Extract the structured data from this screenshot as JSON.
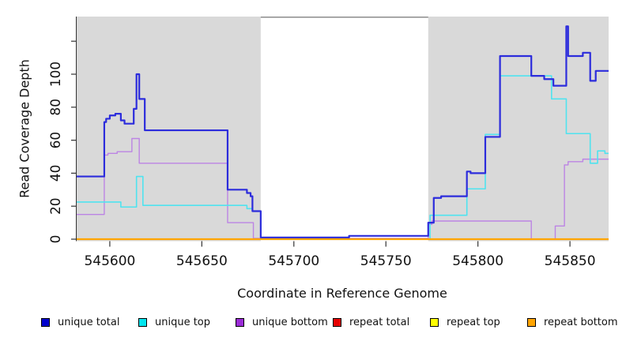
{
  "figure": {
    "x_title": "Coordinate in Reference Genome",
    "y_title": "Read Coverage Depth"
  },
  "chart_data": {
    "type": "line",
    "style": "step",
    "title": "",
    "xlabel": "Coordinate in Reference Genome",
    "ylabel": "Read Coverage Depth",
    "x_domain": [
      545582,
      545871
    ],
    "y_domain": [
      0,
      134
    ],
    "grid": false,
    "legend_position": "bottom",
    "panel_bg": "#d9d9d9",
    "axis_color": "#333333",
    "tick_label_color": "#111111",
    "x_ticks": [
      {
        "value": 545600,
        "label": "545600"
      },
      {
        "value": 545650,
        "label": "545650"
      },
      {
        "value": 545700,
        "label": "545700"
      },
      {
        "value": 545750,
        "label": "545750"
      },
      {
        "value": 545800,
        "label": "545800"
      },
      {
        "value": 545850,
        "label": "545850"
      }
    ],
    "y_ticks": [
      {
        "value": 0,
        "label": "0"
      },
      {
        "value": 20,
        "label": "20"
      },
      {
        "value": 40,
        "label": "40"
      },
      {
        "value": 60,
        "label": "60"
      },
      {
        "value": 80,
        "label": "80"
      },
      {
        "value": 100,
        "label": "100"
      },
      {
        "value": 120,
        "label": ""
      }
    ],
    "gap_region": {
      "x_start": 545682,
      "x_end": 545773,
      "fill": "#ffffff",
      "top_border": "#8c8c8c"
    },
    "series": [
      {
        "name": "unique bottom",
        "id": "unique-bottom",
        "color": "#bc84e4",
        "width": 1.4,
        "points": [
          [
            545582,
            15
          ],
          [
            545597,
            51
          ],
          [
            545599,
            52
          ],
          [
            545604,
            53
          ],
          [
            545612,
            61
          ],
          [
            545616,
            46
          ],
          [
            545664,
            10
          ],
          [
            545678,
            0.5
          ],
          [
            545773,
            9
          ],
          [
            545775,
            11
          ],
          [
            545829,
            0
          ],
          [
            545842,
            8
          ],
          [
            545847,
            45
          ],
          [
            545849,
            47
          ],
          [
            545857,
            48.5
          ],
          [
            545871,
            48.5
          ]
        ]
      },
      {
        "name": "unique top",
        "id": "unique-top",
        "color": "#4fe3ef",
        "width": 1.6,
        "points": [
          [
            545582,
            22.5
          ],
          [
            545606,
            19.5
          ],
          [
            545614.5,
            38
          ],
          [
            545618,
            20.5
          ],
          [
            545674.5,
            18.5
          ],
          [
            545677.5,
            17
          ],
          [
            545682,
            0
          ],
          [
            545774,
            14.5
          ],
          [
            545794,
            30.5
          ],
          [
            545804,
            63.5
          ],
          [
            545812,
            99
          ],
          [
            545840,
            85
          ],
          [
            545848,
            64
          ],
          [
            545861,
            46
          ],
          [
            545865,
            53.5
          ],
          [
            545869,
            52
          ],
          [
            545871,
            52
          ]
        ]
      },
      {
        "name": "unique total",
        "id": "unique-total",
        "color": "#2c2cdc",
        "width": 2.2,
        "points": [
          [
            545582,
            38
          ],
          [
            545597,
            71
          ],
          [
            545598,
            73
          ],
          [
            545600,
            75
          ],
          [
            545603,
            76
          ],
          [
            545606,
            72
          ],
          [
            545608,
            70
          ],
          [
            545613,
            79
          ],
          [
            545614.5,
            100
          ],
          [
            545616,
            85
          ],
          [
            545619,
            66
          ],
          [
            545664,
            30
          ],
          [
            545674.5,
            28
          ],
          [
            545676.5,
            26
          ],
          [
            545677.5,
            17
          ],
          [
            545682,
            1
          ],
          [
            545730,
            2
          ],
          [
            545773,
            10
          ],
          [
            545776,
            25
          ],
          [
            545780,
            26
          ],
          [
            545794,
            41
          ],
          [
            545796,
            40
          ],
          [
            545804,
            62
          ],
          [
            545812,
            111
          ],
          [
            545829,
            99
          ],
          [
            545836,
            97
          ],
          [
            545841,
            93
          ],
          [
            545848,
            129
          ],
          [
            545849,
            111
          ],
          [
            545857,
            113
          ],
          [
            545861,
            96
          ],
          [
            545864,
            102
          ],
          [
            545871,
            102
          ]
        ]
      },
      {
        "name": "repeat total",
        "id": "repeat-total",
        "color": "#cc0000",
        "width": 1.3,
        "points": [
          [
            545582,
            0
          ],
          [
            545871,
            0
          ]
        ]
      },
      {
        "name": "repeat top",
        "id": "repeat-top",
        "color": "#ffff00",
        "width": 1.3,
        "points": [
          [
            545582,
            0
          ],
          [
            545871,
            0
          ]
        ]
      },
      {
        "name": "repeat bottom",
        "id": "repeat-bottom",
        "color": "#ffa500",
        "width": 2.2,
        "points": [
          [
            545582,
            0
          ],
          [
            545871,
            0
          ]
        ]
      }
    ]
  },
  "legend": {
    "items": [
      {
        "label": "unique total",
        "swatch": "#0000cd"
      },
      {
        "label": "unique top",
        "swatch": "#00e5ee"
      },
      {
        "label": "unique bottom",
        "swatch": "#9a2bd6"
      },
      {
        "label": "repeat total",
        "swatch": "#e60000"
      },
      {
        "label": "repeat top",
        "swatch": "#ffff00"
      },
      {
        "label": "repeat bottom",
        "swatch": "#ffa500"
      }
    ]
  }
}
